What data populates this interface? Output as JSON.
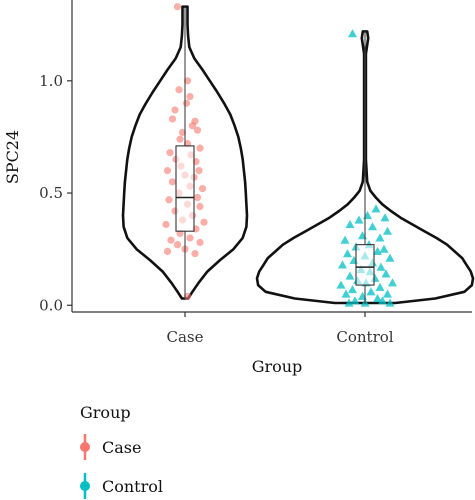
{
  "chart_data": {
    "type": "violin",
    "xlabel": "Group",
    "ylabel": "SPC24",
    "ylim": [
      -0.03,
      1.36
    ],
    "yticks": [
      0.0,
      0.5,
      1.0
    ],
    "ytick_labels": [
      "0.0",
      "0.5",
      "1.0"
    ],
    "categories": [
      "Case",
      "Control"
    ],
    "grid": false,
    "legend": {
      "title": "Group",
      "placement": "bottom-left",
      "entries": [
        "Case",
        "Control"
      ]
    },
    "series": [
      {
        "name": "Case",
        "color": "#F8766D",
        "marker": "circle",
        "box": {
          "min": 0.03,
          "q1": 0.33,
          "median": 0.48,
          "q3": 0.71,
          "max": 1.33
        },
        "density": [
          [
            0.03,
            0.05
          ],
          [
            0.06,
            0.12
          ],
          [
            0.1,
            0.22
          ],
          [
            0.15,
            0.36
          ],
          [
            0.2,
            0.56
          ],
          [
            0.25,
            0.78
          ],
          [
            0.3,
            0.93
          ],
          [
            0.35,
            0.99
          ],
          [
            0.4,
            1.0
          ],
          [
            0.45,
            0.99
          ],
          [
            0.5,
            0.98
          ],
          [
            0.55,
            0.97
          ],
          [
            0.6,
            0.95
          ],
          [
            0.65,
            0.93
          ],
          [
            0.7,
            0.9
          ],
          [
            0.75,
            0.86
          ],
          [
            0.8,
            0.8
          ],
          [
            0.85,
            0.73
          ],
          [
            0.9,
            0.63
          ],
          [
            0.95,
            0.52
          ],
          [
            1.0,
            0.4
          ],
          [
            1.05,
            0.28
          ],
          [
            1.1,
            0.15
          ],
          [
            1.15,
            0.07
          ],
          [
            1.2,
            0.05
          ],
          [
            1.25,
            0.04
          ],
          [
            1.3,
            0.04
          ],
          [
            1.33,
            0.04
          ]
        ],
        "points": [
          [
            -0.15,
            1.33
          ],
          [
            0.05,
            1.0
          ],
          [
            -0.12,
            0.96
          ],
          [
            0.1,
            0.93
          ],
          [
            -0.2,
            0.87
          ],
          [
            0.03,
            0.9
          ],
          [
            0.2,
            0.82
          ],
          [
            -0.25,
            0.83
          ],
          [
            0.15,
            0.8
          ],
          [
            -0.05,
            0.77
          ],
          [
            0.25,
            0.78
          ],
          [
            -0.1,
            0.74
          ],
          [
            0.05,
            0.72
          ],
          [
            0.3,
            0.7
          ],
          [
            -0.3,
            0.68
          ],
          [
            0.12,
            0.67
          ],
          [
            -0.18,
            0.65
          ],
          [
            0.22,
            0.64
          ],
          [
            -0.08,
            0.62
          ],
          [
            0.28,
            0.6
          ],
          [
            -0.35,
            0.6
          ],
          [
            0.0,
            0.58
          ],
          [
            0.18,
            0.57
          ],
          [
            -0.25,
            0.55
          ],
          [
            0.1,
            0.53
          ],
          [
            0.35,
            0.52
          ],
          [
            -0.12,
            0.5
          ],
          [
            0.25,
            0.48
          ],
          [
            -0.32,
            0.47
          ],
          [
            0.05,
            0.45
          ],
          [
            0.3,
            0.44
          ],
          [
            -0.2,
            0.42
          ],
          [
            0.15,
            0.4
          ],
          [
            -0.05,
            0.38
          ],
          [
            0.38,
            0.37
          ],
          [
            -0.38,
            0.36
          ],
          [
            0.22,
            0.34
          ],
          [
            -0.1,
            0.32
          ],
          [
            0.1,
            0.3
          ],
          [
            -0.28,
            0.29
          ],
          [
            0.3,
            0.28
          ],
          [
            -0.15,
            0.27
          ],
          [
            0.0,
            0.25
          ],
          [
            -0.35,
            0.24
          ],
          [
            0.2,
            0.23
          ],
          [
            0.05,
            0.04
          ]
        ]
      },
      {
        "name": "Control",
        "color": "#00BFC4",
        "marker": "triangle",
        "box": {
          "min": 0.01,
          "q1": 0.09,
          "median": 0.17,
          "q3": 0.27,
          "max": 1.22
        },
        "density": [
          [
            0.01,
            0.28
          ],
          [
            0.03,
            0.65
          ],
          [
            0.06,
            0.92
          ],
          [
            0.09,
            0.99
          ],
          [
            0.12,
            1.0
          ],
          [
            0.15,
            0.98
          ],
          [
            0.18,
            0.94
          ],
          [
            0.21,
            0.9
          ],
          [
            0.24,
            0.83
          ],
          [
            0.27,
            0.76
          ],
          [
            0.3,
            0.66
          ],
          [
            0.33,
            0.55
          ],
          [
            0.36,
            0.44
          ],
          [
            0.39,
            0.33
          ],
          [
            0.42,
            0.24
          ],
          [
            0.45,
            0.16
          ],
          [
            0.48,
            0.1
          ],
          [
            0.51,
            0.05
          ],
          [
            0.55,
            0.02
          ],
          [
            0.65,
            0.008
          ],
          [
            0.8,
            0.008
          ],
          [
            1.0,
            0.008
          ],
          [
            1.12,
            0.008
          ],
          [
            1.16,
            0.02
          ],
          [
            1.19,
            0.03
          ],
          [
            1.22,
            0.02
          ]
        ],
        "points": [
          [
            -0.25,
            1.21
          ],
          [
            0.22,
            0.43
          ],
          [
            0.05,
            0.4
          ],
          [
            0.4,
            0.39
          ],
          [
            -0.12,
            0.38
          ],
          [
            -0.3,
            0.36
          ],
          [
            0.15,
            0.35
          ],
          [
            0.45,
            0.33
          ],
          [
            -0.05,
            0.31
          ],
          [
            0.3,
            0.3
          ],
          [
            -0.4,
            0.29
          ],
          [
            0.08,
            0.27
          ],
          [
            -0.18,
            0.26
          ],
          [
            0.38,
            0.25
          ],
          [
            0.25,
            0.24
          ],
          [
            -0.35,
            0.23
          ],
          [
            0.0,
            0.22
          ],
          [
            0.5,
            0.21
          ],
          [
            -0.22,
            0.2
          ],
          [
            0.15,
            0.19
          ],
          [
            -0.45,
            0.18
          ],
          [
            0.32,
            0.17
          ],
          [
            -0.08,
            0.16
          ],
          [
            0.1,
            0.15
          ],
          [
            0.42,
            0.14
          ],
          [
            -0.3,
            0.13
          ],
          [
            0.2,
            0.12
          ],
          [
            -0.15,
            0.11
          ],
          [
            0.55,
            0.1
          ],
          [
            0.02,
            0.1
          ],
          [
            -0.48,
            0.09
          ],
          [
            0.3,
            0.08
          ],
          [
            -0.25,
            0.07
          ],
          [
            0.12,
            0.06
          ],
          [
            -0.38,
            0.05
          ],
          [
            0.45,
            0.05
          ],
          [
            -0.05,
            0.04
          ],
          [
            0.25,
            0.03
          ],
          [
            -0.2,
            0.02
          ],
          [
            0.35,
            0.02
          ],
          [
            0.0,
            0.01
          ],
          [
            -0.32,
            0.01
          ],
          [
            0.5,
            0.01
          ]
        ]
      }
    ]
  }
}
